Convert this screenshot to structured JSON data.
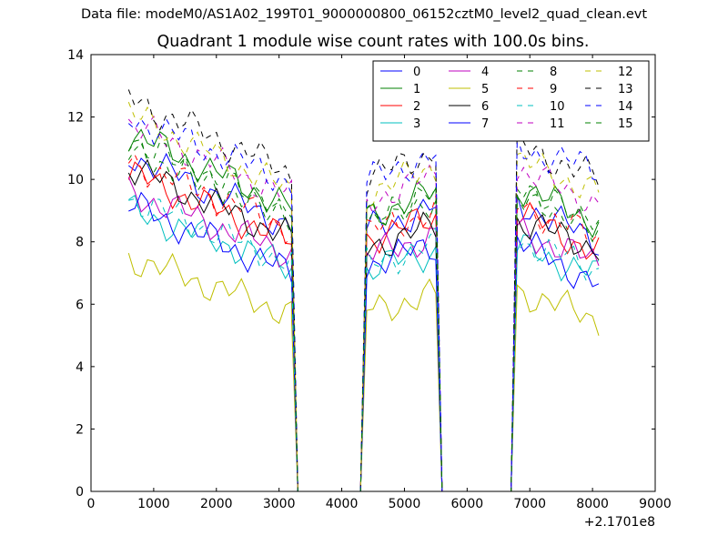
{
  "suptitle": "Data file: modeM0/AS1A02_199T01_9000000800_06152cztM0_level2_quad_clean.evt",
  "chart_data": {
    "type": "line",
    "title": "Quadrant 1 module wise count rates with 100.0s bins.",
    "xlabel": "",
    "ylabel": "",
    "x_offset_label": "+2.1701e8",
    "xlim": [
      0,
      9000
    ],
    "ylim": [
      0,
      14
    ],
    "xticks": [
      0,
      1000,
      2000,
      3000,
      4000,
      5000,
      6000,
      7000,
      8000,
      9000
    ],
    "yticks": [
      0,
      2,
      4,
      6,
      8,
      10,
      12,
      14
    ],
    "grid": false,
    "legend_position": "top-right",
    "legend_columns": 4,
    "gap_x": [
      3300,
      4300,
      5600,
      6700
    ],
    "x_segments": [
      [
        600,
        3200
      ],
      [
        4400,
        5500
      ],
      [
        6800,
        8100
      ]
    ],
    "series": [
      {
        "name": "0",
        "color": "#0000ff",
        "dash": false,
        "levels": [
          10.8,
          8.5,
          9.1,
          8.0
        ]
      },
      {
        "name": "1",
        "color": "#008000",
        "dash": false,
        "levels": [
          11.5,
          9.1,
          9.6,
          8.6
        ]
      },
      {
        "name": "2",
        "color": "#ff0000",
        "dash": false,
        "levels": [
          10.2,
          8.0,
          8.8,
          7.6
        ]
      },
      {
        "name": "3",
        "color": "#00bfbf",
        "dash": false,
        "levels": [
          9.0,
          7.2,
          7.7,
          6.9
        ]
      },
      {
        "name": "4",
        "color": "#bf00bf",
        "dash": false,
        "levels": [
          9.6,
          7.6,
          8.2,
          7.3
        ]
      },
      {
        "name": "5",
        "color": "#bfbf00",
        "dash": false,
        "levels": [
          7.5,
          5.7,
          6.3,
          5.5
        ]
      },
      {
        "name": "6",
        "color": "#000000",
        "dash": false,
        "levels": [
          10.4,
          8.1,
          8.5,
          7.8
        ]
      },
      {
        "name": "7",
        "color": "#0000ff",
        "dash": false,
        "levels": [
          9.2,
          7.0,
          7.9,
          6.6
        ]
      },
      {
        "name": "8",
        "color": "#008000",
        "dash": true,
        "levels": [
          11.0,
          8.8,
          9.4,
          8.4
        ]
      },
      {
        "name": "9",
        "color": "#ff0000",
        "dash": true,
        "levels": [
          10.6,
          8.4,
          9.0,
          8.1
        ]
      },
      {
        "name": "10",
        "color": "#00bfbf",
        "dash": true,
        "levels": [
          9.4,
          7.3,
          7.9,
          7.1
        ]
      },
      {
        "name": "11",
        "color": "#bf00bf",
        "dash": true,
        "levels": [
          11.8,
          9.4,
          10.1,
          9.2
        ]
      },
      {
        "name": "12",
        "color": "#bfbf00",
        "dash": true,
        "levels": [
          12.1,
          9.6,
          10.4,
          9.6
        ]
      },
      {
        "name": "13",
        "color": "#000000",
        "dash": true,
        "levels": [
          12.6,
          10.2,
          10.9,
          10.0
        ]
      },
      {
        "name": "14",
        "color": "#0000ff",
        "dash": true,
        "levels": [
          12.0,
          9.9,
          10.8,
          10.3
        ]
      },
      {
        "name": "15",
        "color": "#008000",
        "dash": true,
        "levels": [
          11.2,
          8.9,
          9.5,
          8.5
        ]
      }
    ]
  }
}
